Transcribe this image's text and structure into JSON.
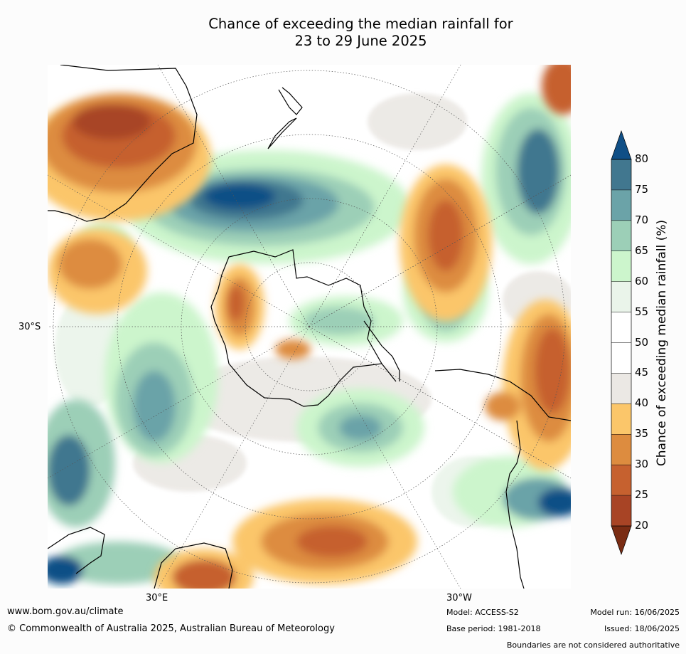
{
  "title_line1": "Chance of exceeding the median rainfall for",
  "title_line2": "23 to 29 June 2025",
  "map": {
    "lat_label": "30°S",
    "lon_label_east": "30°E",
    "lon_label_west": "30°W"
  },
  "colorbar": {
    "title": "Chance of exceeding median rainfall (%)",
    "ticks": [
      "20",
      "25",
      "30",
      "35",
      "40",
      "45",
      "50",
      "55",
      "60",
      "65",
      "70",
      "75",
      "80"
    ],
    "colors": [
      "#7a2c13",
      "#a84425",
      "#c6612f",
      "#dd8c3f",
      "#fbc66a",
      "#ebe8e4",
      "#ffffff",
      "#ffffff",
      "#eaf4ea",
      "#ccf5cc",
      "#9ccfb7",
      "#6ba3a8",
      "#41778f",
      "#104f86"
    ]
  },
  "footer": {
    "url": "www.bom.gov.au/climate",
    "copyright": "© Commonwealth of Australia 2025, Australian Bureau of Meteorology",
    "model": "Model: ACCESS-S2",
    "base_period": "Base period: 1981-2018",
    "model_run": "Model run: 16/06/2025",
    "issued": "Issued: 18/06/2025",
    "disclaimer": "Boundaries are not considered authoritative"
  }
}
